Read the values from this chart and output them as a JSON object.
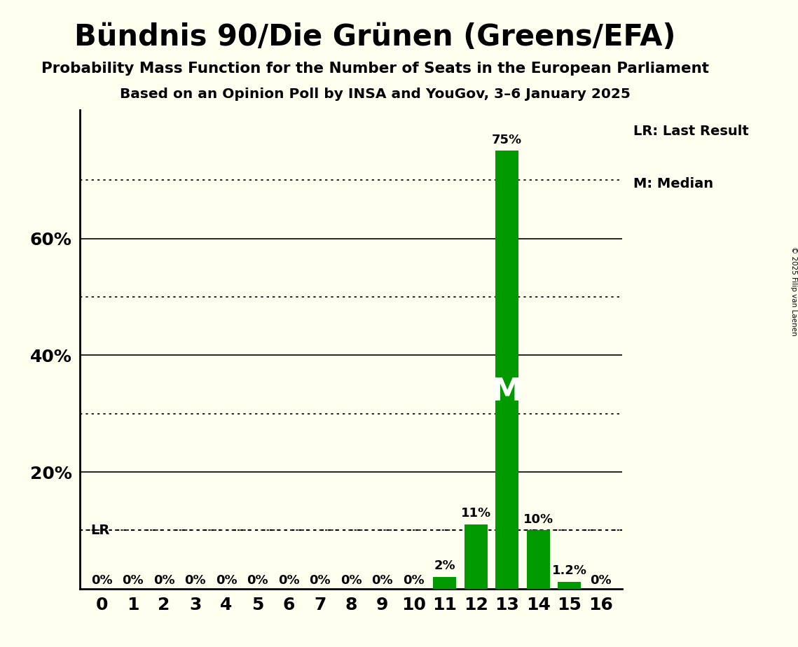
{
  "title": "Bündnis 90/Die Grünen (Greens/EFA)",
  "subtitle1": "Probability Mass Function for the Number of Seats in the European Parliament",
  "subtitle2": "Based on an Opinion Poll by INSA and YouGov, 3–6 January 2025",
  "copyright": "© 2025 Filip van Laenen",
  "categories": [
    0,
    1,
    2,
    3,
    4,
    5,
    6,
    7,
    8,
    9,
    10,
    11,
    12,
    13,
    14,
    15,
    16
  ],
  "values": [
    0,
    0,
    0,
    0,
    0,
    0,
    0,
    0,
    0,
    0,
    0,
    2,
    11,
    75,
    10,
    1.2,
    0
  ],
  "bar_color": "#009900",
  "background_color": "#FFFFF0",
  "median_seat": 13,
  "last_result_value": 10,
  "median_label": "M",
  "lr_label": "LR",
  "legend_lr": "LR: Last Result",
  "legend_m": "M: Median",
  "solid_yticks": [
    20,
    40,
    60
  ],
  "dotted_yticks": [
    10,
    30,
    50,
    70
  ],
  "ylim": [
    0,
    82
  ],
  "bar_labels": [
    "0%",
    "0%",
    "0%",
    "0%",
    "0%",
    "0%",
    "0%",
    "0%",
    "0%",
    "0%",
    "0%",
    "2%",
    "11%",
    "75%",
    "10%",
    "1.2%",
    "0%"
  ]
}
